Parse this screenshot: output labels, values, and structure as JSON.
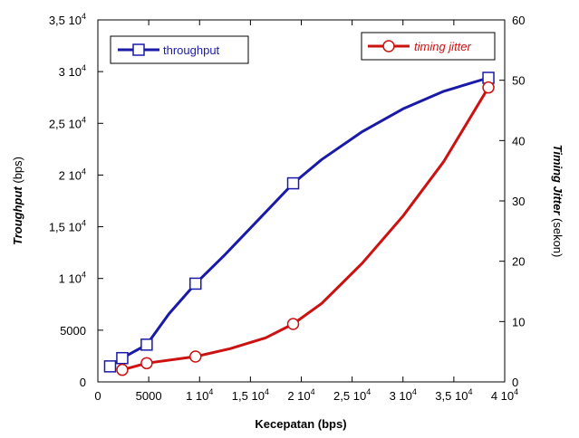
{
  "chart_data": {
    "type": "line",
    "xlabel": "Kecepatan (bps)",
    "ylabel_left": {
      "italic": "Troughput",
      "rest": " (bps)"
    },
    "ylabel_right": {
      "italic": "Timing Jitter",
      "rest": " (sekon)"
    },
    "xlim": [
      0,
      40000
    ],
    "ylim_left": [
      0,
      35000
    ],
    "ylim_right": [
      0,
      60
    ],
    "grid": false,
    "x_ticks": [
      {
        "value": 0,
        "label": "0",
        "exp": ""
      },
      {
        "value": 5000,
        "label": "5000",
        "exp": ""
      },
      {
        "value": 10000,
        "label": "1 10",
        "exp": "4"
      },
      {
        "value": 15000,
        "label": "1,5 10",
        "exp": "4"
      },
      {
        "value": 20000,
        "label": "2 10",
        "exp": "4"
      },
      {
        "value": 25000,
        "label": "2,5 10",
        "exp": "4"
      },
      {
        "value": 30000,
        "label": "3 10",
        "exp": "4"
      },
      {
        "value": 35000,
        "label": "3,5 10",
        "exp": "4"
      },
      {
        "value": 40000,
        "label": "4 10",
        "exp": "4"
      }
    ],
    "y_left_ticks": [
      {
        "value": 0,
        "label": "0",
        "exp": ""
      },
      {
        "value": 5000,
        "label": "5000",
        "exp": ""
      },
      {
        "value": 10000,
        "label": "1 10",
        "exp": "4"
      },
      {
        "value": 15000,
        "label": "1,5 10",
        "exp": "4"
      },
      {
        "value": 20000,
        "label": "2 10",
        "exp": "4"
      },
      {
        "value": 25000,
        "label": "2,5 10",
        "exp": "4"
      },
      {
        "value": 30000,
        "label": "3 10",
        "exp": "4"
      },
      {
        "value": 35000,
        "label": "3,5 10",
        "exp": "4"
      }
    ],
    "y_right_ticks": [
      {
        "value": 0,
        "label": "0"
      },
      {
        "value": 10,
        "label": "10"
      },
      {
        "value": 20,
        "label": "20"
      },
      {
        "value": 30,
        "label": "30"
      },
      {
        "value": 40,
        "label": "40"
      },
      {
        "value": 50,
        "label": "50"
      },
      {
        "value": 60,
        "label": "60"
      }
    ],
    "series": [
      {
        "name": "throughput",
        "axis": "left",
        "color": "#1a1aa8",
        "marker": "square",
        "points": [
          {
            "x": 1200,
            "y": 1500
          },
          {
            "x": 2400,
            "y": 2300
          },
          {
            "x": 4800,
            "y": 3600
          },
          {
            "x": 9600,
            "y": 9500
          },
          {
            "x": 19200,
            "y": 19200
          },
          {
            "x": 38400,
            "y": 29400
          }
        ],
        "curve": [
          {
            "x": 1200,
            "y": 1500
          },
          {
            "x": 2400,
            "y": 2300
          },
          {
            "x": 4800,
            "y": 3600
          },
          {
            "x": 7000,
            "y": 6600
          },
          {
            "x": 9600,
            "y": 9500
          },
          {
            "x": 12500,
            "y": 12300
          },
          {
            "x": 16000,
            "y": 15900
          },
          {
            "x": 19200,
            "y": 19200
          },
          {
            "x": 22000,
            "y": 21500
          },
          {
            "x": 26000,
            "y": 24200
          },
          {
            "x": 30000,
            "y": 26400
          },
          {
            "x": 34000,
            "y": 28100
          },
          {
            "x": 38400,
            "y": 29400
          }
        ]
      },
      {
        "name": "timing jitter",
        "axis": "right",
        "color": "#cc1111",
        "marker": "circle",
        "points": [
          {
            "x": 2400,
            "y": 2.0
          },
          {
            "x": 4800,
            "y": 3.1
          },
          {
            "x": 9600,
            "y": 4.2
          },
          {
            "x": 19200,
            "y": 9.6
          },
          {
            "x": 38400,
            "y": 48.8
          }
        ],
        "curve": [
          {
            "x": 2400,
            "y": 2.0
          },
          {
            "x": 4800,
            "y": 3.1
          },
          {
            "x": 9600,
            "y": 4.2
          },
          {
            "x": 13000,
            "y": 5.5
          },
          {
            "x": 16500,
            "y": 7.3
          },
          {
            "x": 19200,
            "y": 9.6
          },
          {
            "x": 22000,
            "y": 13.0
          },
          {
            "x": 26000,
            "y": 19.7
          },
          {
            "x": 30000,
            "y": 27.5
          },
          {
            "x": 34000,
            "y": 36.5
          },
          {
            "x": 38400,
            "y": 48.8
          }
        ]
      }
    ]
  }
}
